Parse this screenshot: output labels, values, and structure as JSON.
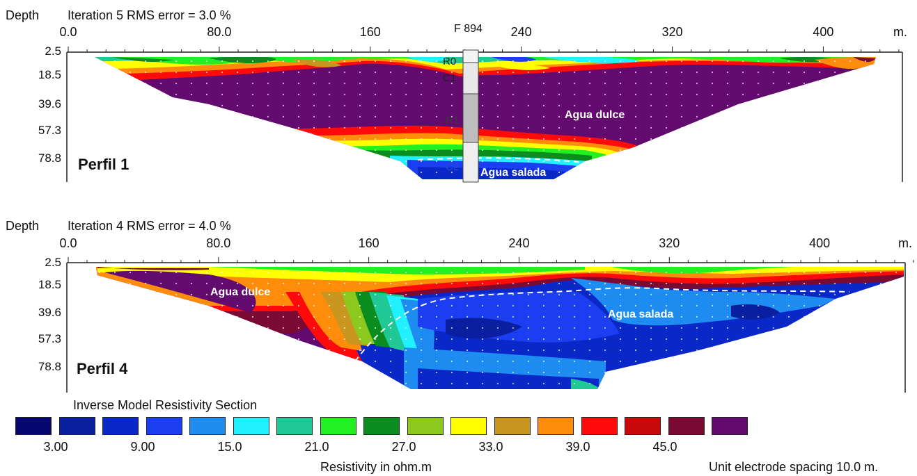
{
  "chart_data": [
    {
      "type": "heatmap",
      "depth_label": "Depth",
      "title": "Iteration 5 RMS error = 3.0 %",
      "x_unit": "m.",
      "x_ticks": [
        "0.0",
        "80.0",
        "160",
        "240",
        "320",
        "400"
      ],
      "x_tick_values": [
        0,
        80,
        160,
        240,
        320,
        400
      ],
      "xlim": [
        0,
        450
      ],
      "depth_ticks": [
        "2.5",
        "18.5",
        "39.6",
        "57.3",
        "78.8"
      ],
      "depth_values": [
        2.5,
        18.5,
        39.6,
        57.3,
        78.8
      ],
      "profile_label": "Perfil 1",
      "annotations": {
        "well": "F 894",
        "layers": [
          "R0",
          "C1",
          "R1",
          "C2"
        ],
        "fresh": "Agua dulce",
        "salt": "Agua salada"
      }
    },
    {
      "type": "heatmap",
      "depth_label": "Depth",
      "title": "Iteration 4 RMS error = 4.0 %",
      "x_unit": "m.",
      "x_ticks": [
        "0.0",
        "80.0",
        "160",
        "240",
        "320",
        "400"
      ],
      "x_tick_values": [
        0,
        80,
        160,
        240,
        320,
        400
      ],
      "xlim": [
        0,
        450
      ],
      "depth_ticks": [
        "2.5",
        "18.5",
        "39.6",
        "57.3",
        "78.8"
      ],
      "depth_values": [
        2.5,
        18.5,
        39.6,
        57.3,
        78.8
      ],
      "profile_label": "Perfil 4",
      "annotations": {
        "fresh": "Agua dulce",
        "salt": "Agua salada"
      }
    }
  ],
  "legend": {
    "title": "Inverse Model Resistivity Section",
    "colors": [
      "#06066e",
      "#0a1ea0",
      "#0a28c8",
      "#1a3ef0",
      "#1e8cf0",
      "#20f0ff",
      "#20c896",
      "#22f020",
      "#0a8c1e",
      "#8cc81e",
      "#ffff00",
      "#c8961e",
      "#ff8c0a",
      "#ff0a0a",
      "#c80a0a",
      "#7a0a32",
      "#620a6e"
    ],
    "values": [
      "3.00",
      "9.00",
      "15.0",
      "21.0",
      "27.0",
      "33.0",
      "39.0",
      "45.0"
    ],
    "unit_label": "Resistivity in ohm.m",
    "spacing_label": "Unit electrode spacing 10.0 m."
  }
}
